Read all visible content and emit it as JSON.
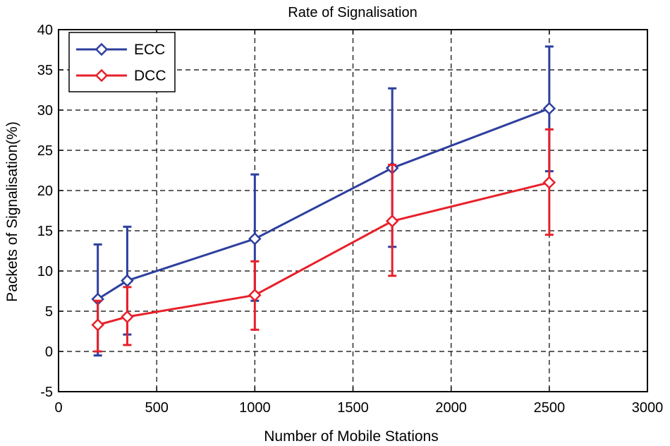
{
  "chart_data": {
    "type": "line",
    "title": "Rate of Signalisation",
    "xlabel": "Number of Mobile Stations",
    "ylabel": "Packets of Signalisation(%)",
    "xlim": [
      0,
      3000
    ],
    "ylim": [
      -5,
      40
    ],
    "xticks": [
      0,
      500,
      1000,
      1500,
      2000,
      2500,
      3000
    ],
    "yticks": [
      -5,
      0,
      5,
      10,
      15,
      20,
      25,
      30,
      35,
      40
    ],
    "grid": true,
    "legend_position": "top-left",
    "series": [
      {
        "name": "ECC",
        "color": "#2e3f9e",
        "marker": "diamond",
        "x": [
          200,
          350,
          1000,
          1700,
          2500
        ],
        "y": [
          6.5,
          8.8,
          14.0,
          22.8,
          30.2
        ],
        "err_low": [
          -0.5,
          2.1,
          6.3,
          13.0,
          22.4
        ],
        "err_high": [
          13.3,
          15.5,
          22.0,
          32.7,
          37.9
        ]
      },
      {
        "name": "DCC",
        "color": "#e8202a",
        "marker": "diamond",
        "x": [
          200,
          350,
          1000,
          1700,
          2500
        ],
        "y": [
          3.3,
          4.3,
          7.0,
          16.2,
          21.0
        ],
        "err_low": [
          0.0,
          0.8,
          2.7,
          9.4,
          14.5
        ],
        "err_high": [
          6.3,
          8.0,
          11.2,
          23.2,
          27.6
        ]
      }
    ]
  }
}
